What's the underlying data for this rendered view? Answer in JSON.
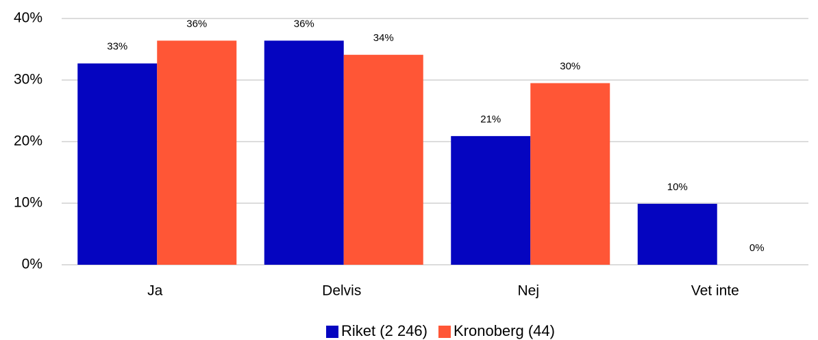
{
  "chart_data": {
    "type": "bar",
    "categories": [
      "Ja",
      "Delvis",
      "Nej",
      "Vet inte"
    ],
    "series": [
      {
        "name": "Riket (2 246)",
        "color": "#0505c0",
        "values": [
          32.7,
          36.4,
          20.9,
          9.9
        ],
        "value_labels": [
          "33%",
          "36%",
          "21%",
          "10%"
        ]
      },
      {
        "name": "Kronoberg (44)",
        "color": "#ff5636",
        "values": [
          36.4,
          34.1,
          29.5,
          0
        ],
        "value_labels": [
          "36%",
          "34%",
          "30%",
          "0%"
        ]
      }
    ],
    "ylim": [
      0,
      40
    ],
    "yticks": [
      {
        "value": 0,
        "label": "0%"
      },
      {
        "value": 10,
        "label": "10%"
      },
      {
        "value": 20,
        "label": "20%"
      },
      {
        "value": 30,
        "label": "30%"
      },
      {
        "value": 40,
        "label": "40%"
      }
    ],
    "grid": true,
    "legend": "bottom"
  }
}
